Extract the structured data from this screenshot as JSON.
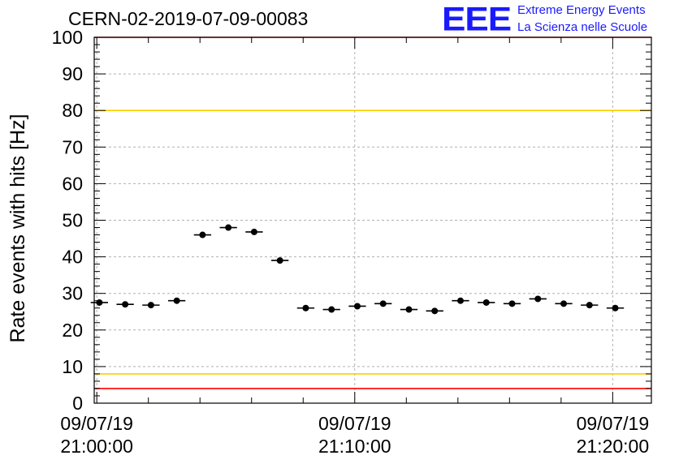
{
  "header": {
    "title": "CERN-02-2019-07-09-00083",
    "logo_text": "EEE",
    "logo_line1": "Extreme Energy Events",
    "logo_line2": "La Scienza nelle Scuole"
  },
  "colors": {
    "logo": "#1a1aff",
    "red_line": "#ff0000",
    "yellow_line": "#ffcc00",
    "points": "#000000",
    "grid": "#b0b0b0"
  },
  "chart_data": {
    "type": "scatter",
    "title": "CERN-02-2019-07-09-00083",
    "xlabel": "",
    "ylabel": "Rate events with hits [Hz]",
    "ylim": [
      0,
      100
    ],
    "xlim_minutes": [
      -0.1,
      21.5
    ],
    "x_ticks": [
      {
        "minute": 0,
        "date": "09/07/19",
        "time": "21:00:00"
      },
      {
        "minute": 10,
        "date": "09/07/19",
        "time": "21:10:00"
      },
      {
        "minute": 20,
        "date": "09/07/19",
        "time": "21:20:00"
      }
    ],
    "y_ticks": [
      0,
      10,
      20,
      30,
      40,
      50,
      60,
      70,
      80,
      90,
      100
    ],
    "grid": true,
    "reference_lines": [
      {
        "y": 100,
        "color": "#ff0000"
      },
      {
        "y": 80,
        "color": "#ffcc00"
      },
      {
        "y": 8,
        "color": "#ffcc00"
      },
      {
        "y": 4,
        "color": "#ff0000"
      }
    ],
    "bin_width_minutes": 0.67,
    "series": [
      {
        "x_minutes": [
          0.1,
          1.1,
          2.1,
          3.1,
          4.1,
          5.1,
          6.1,
          7.1,
          8.1,
          9.1,
          10.1,
          11.1,
          12.1,
          13.1,
          14.1,
          15.1,
          16.1,
          17.1,
          18.1,
          19.1,
          20.1
        ],
        "values": [
          27.5,
          27.0,
          26.8,
          28.0,
          46.0,
          48.0,
          46.8,
          39.0,
          26.0,
          25.6,
          26.5,
          27.2,
          25.6,
          25.2,
          28.0,
          27.5,
          27.2,
          28.5,
          27.2,
          26.8,
          26.0
        ]
      }
    ]
  }
}
